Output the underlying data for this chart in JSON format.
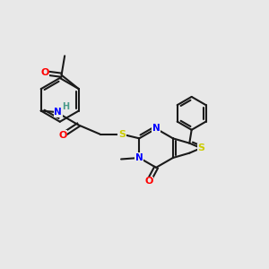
{
  "background_color": "#e8e8e8",
  "bond_color": "#1a1a1a",
  "atom_colors": {
    "O": "#ff0000",
    "N": "#0000ff",
    "S": "#cccc00",
    "H": "#4a9a8a",
    "C": "#1a1a1a"
  },
  "title": "",
  "figsize": [
    3.0,
    3.0
  ],
  "dpi": 100
}
